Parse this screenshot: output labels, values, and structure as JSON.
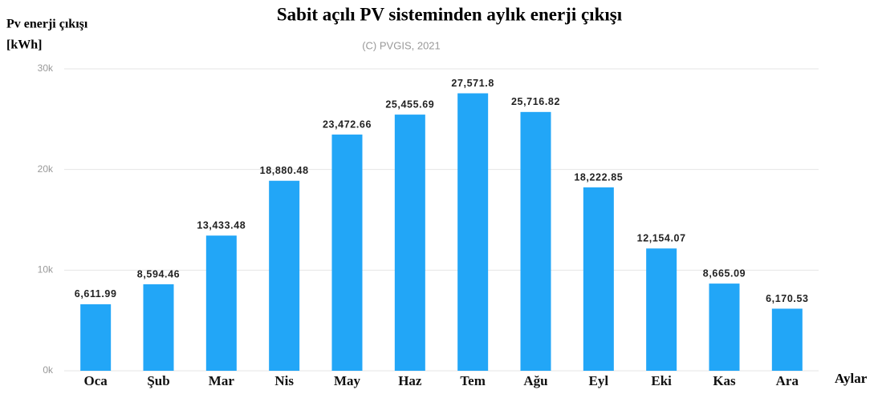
{
  "chart_data": {
    "type": "bar",
    "title": "Sabit açılı PV sisteminden aylık enerji çıkışı",
    "subtitle": "(C) PVGIS, 2021",
    "y_label": [
      "Pv enerji çıkışı",
      "[kWh]"
    ],
    "x_label": "Aylar",
    "categories": [
      "Oca",
      "Şub",
      "Mar",
      "Nis",
      "May",
      "Haz",
      "Tem",
      "Ağu",
      "Eyl",
      "Eki",
      "Kas",
      "Ara"
    ],
    "values": [
      6611.99,
      8594.46,
      13433.48,
      18880.48,
      23472.66,
      25455.69,
      27571.8,
      25716.82,
      18222.85,
      12154.07,
      8665.09,
      6170.53
    ],
    "value_labels": [
      "6,611.99",
      "8,594.46",
      "13,433.48",
      "18,880.48",
      "23,472.66",
      "25,455.69",
      "27,571.8",
      "25,716.82",
      "18,222.85",
      "12,154.07",
      "8,665.09",
      "6,170.53"
    ],
    "color": "#22a6f7",
    "ylim": [
      0,
      30000
    ],
    "yticks": [
      {
        "value": 0,
        "label": "0k"
      },
      {
        "value": 10000,
        "label": "10k"
      },
      {
        "value": 20000,
        "label": "20k"
      },
      {
        "value": 30000,
        "label": "30k"
      }
    ],
    "grid": true
  }
}
